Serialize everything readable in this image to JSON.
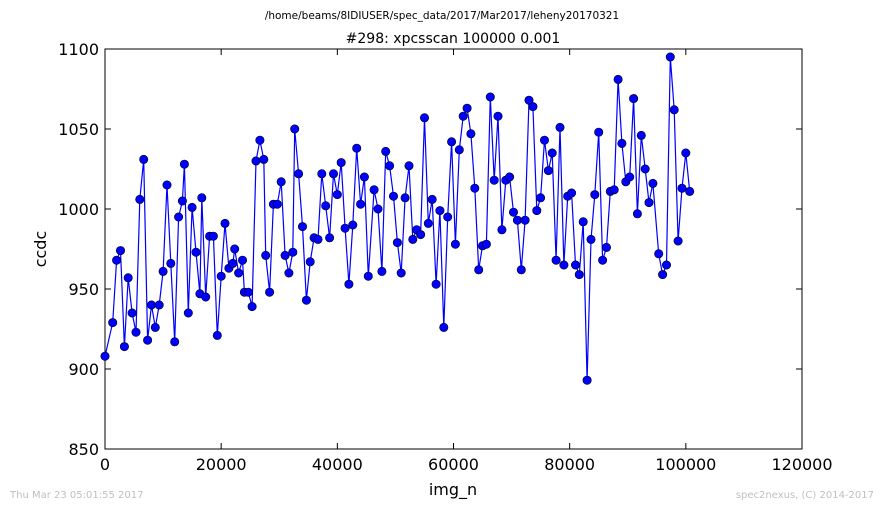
{
  "chart_data": {
    "type": "line",
    "suptitle": "/home/beams/8IDIUSER/spec_data/2017/Mar2017/leheny20170321",
    "title": "#298: xpcsscan 100000 0.001",
    "xlabel": "img_n",
    "ylabel": "ccdc",
    "xlim": [
      0,
      120000
    ],
    "ylim": [
      850,
      1100
    ],
    "xticks": [
      0,
      20000,
      40000,
      60000,
      80000,
      100000,
      120000
    ],
    "yticks": [
      850,
      900,
      950,
      1000,
      1050,
      1100
    ],
    "xtick_labels": [
      "0",
      "20000",
      "40000",
      "60000",
      "80000",
      "100000",
      "120000"
    ],
    "ytick_labels": [
      "850",
      "900",
      "950",
      "1000",
      "1050",
      "1100"
    ],
    "grid": false,
    "series": [
      {
        "color": "#0000ff",
        "marker": "circle",
        "points": [
          [
            0,
            908
          ],
          [
            1333,
            929
          ],
          [
            2000,
            968
          ],
          [
            2667,
            974
          ],
          [
            3333,
            914
          ],
          [
            4000,
            957
          ],
          [
            4667,
            935
          ],
          [
            5333,
            923
          ],
          [
            6000,
            1006
          ],
          [
            6667,
            1031
          ],
          [
            7333,
            918
          ],
          [
            8000,
            940
          ],
          [
            8667,
            926
          ],
          [
            9333,
            940
          ],
          [
            10000,
            961
          ],
          [
            10667,
            1015
          ],
          [
            11333,
            966
          ],
          [
            12000,
            917
          ],
          [
            12667,
            995
          ],
          [
            13333,
            1005
          ],
          [
            13667,
            1028
          ],
          [
            14333,
            935
          ],
          [
            15000,
            1001
          ],
          [
            15667,
            973
          ],
          [
            16333,
            947
          ],
          [
            16667,
            1007
          ],
          [
            17333,
            945
          ],
          [
            18000,
            983
          ],
          [
            18667,
            983
          ],
          [
            19333,
            921
          ],
          [
            20000,
            958
          ],
          [
            20667,
            991
          ],
          [
            21333,
            963
          ],
          [
            22000,
            966
          ],
          [
            22333,
            975
          ],
          [
            23000,
            960
          ],
          [
            23667,
            968
          ],
          [
            24000,
            948
          ],
          [
            24667,
            948
          ],
          [
            25333,
            939
          ],
          [
            26000,
            1030
          ],
          [
            26667,
            1043
          ],
          [
            27333,
            1031
          ],
          [
            27667,
            971
          ],
          [
            28333,
            948
          ],
          [
            29000,
            1003
          ],
          [
            29667,
            1003
          ],
          [
            30333,
            1017
          ],
          [
            31000,
            971
          ],
          [
            31667,
            960
          ],
          [
            32333,
            973
          ],
          [
            32667,
            1050
          ],
          [
            33333,
            1022
          ],
          [
            34000,
            989
          ],
          [
            34667,
            943
          ],
          [
            35333,
            967
          ],
          [
            36000,
            982
          ],
          [
            36667,
            981
          ],
          [
            37333,
            1022
          ],
          [
            38000,
            1002
          ],
          [
            38667,
            982
          ],
          [
            39333,
            1022
          ],
          [
            40000,
            1009
          ],
          [
            40667,
            1029
          ],
          [
            41333,
            988
          ],
          [
            42000,
            953
          ],
          [
            42667,
            990
          ],
          [
            43333,
            1038
          ],
          [
            44000,
            1003
          ],
          [
            44667,
            1020
          ],
          [
            45333,
            958
          ],
          [
            46333,
            1012
          ],
          [
            47000,
            1000
          ],
          [
            47667,
            961
          ],
          [
            48333,
            1036
          ],
          [
            49000,
            1027
          ],
          [
            49667,
            1008
          ],
          [
            50333,
            979
          ],
          [
            51000,
            960
          ],
          [
            51667,
            1007
          ],
          [
            52333,
            1027
          ],
          [
            53000,
            981
          ],
          [
            53667,
            987
          ],
          [
            54333,
            984
          ],
          [
            55000,
            1057
          ],
          [
            55667,
            991
          ],
          [
            56333,
            1006
          ],
          [
            57000,
            953
          ],
          [
            57667,
            999
          ],
          [
            58333,
            926
          ],
          [
            59000,
            995
          ],
          [
            59667,
            1042
          ],
          [
            60333,
            978
          ],
          [
            61000,
            1037
          ],
          [
            61667,
            1058
          ],
          [
            62333,
            1063
          ],
          [
            63000,
            1047
          ],
          [
            63667,
            1013
          ],
          [
            64333,
            962
          ],
          [
            65000,
            977
          ],
          [
            65667,
            978
          ],
          [
            66333,
            1070
          ],
          [
            67000,
            1018
          ],
          [
            67667,
            1058
          ],
          [
            68333,
            987
          ],
          [
            69000,
            1018
          ],
          [
            69667,
            1020
          ],
          [
            70333,
            998
          ],
          [
            71000,
            993
          ],
          [
            71667,
            962
          ],
          [
            72333,
            993
          ],
          [
            73000,
            1068
          ],
          [
            73667,
            1064
          ],
          [
            74333,
            999
          ],
          [
            75000,
            1007
          ],
          [
            75667,
            1043
          ],
          [
            76333,
            1024
          ],
          [
            77000,
            1035
          ],
          [
            77667,
            968
          ],
          [
            78333,
            1051
          ],
          [
            79000,
            965
          ],
          [
            79667,
            1008
          ],
          [
            80333,
            1010
          ],
          [
            81000,
            965
          ],
          [
            81667,
            959
          ],
          [
            82333,
            992
          ],
          [
            83000,
            893
          ],
          [
            83667,
            981
          ],
          [
            84333,
            1009
          ],
          [
            85000,
            1048
          ],
          [
            85667,
            968
          ],
          [
            86333,
            976
          ],
          [
            87000,
            1011
          ],
          [
            87667,
            1012
          ],
          [
            88333,
            1081
          ],
          [
            89000,
            1041
          ],
          [
            89667,
            1017
          ],
          [
            90333,
            1020
          ],
          [
            91000,
            1069
          ],
          [
            91667,
            997
          ],
          [
            92333,
            1046
          ],
          [
            93000,
            1025
          ],
          [
            93667,
            1004
          ],
          [
            94333,
            1016
          ],
          [
            95333,
            972
          ],
          [
            96000,
            959
          ],
          [
            96667,
            965
          ],
          [
            97333,
            1095
          ],
          [
            98000,
            1062
          ],
          [
            98667,
            980
          ],
          [
            99333,
            1013
          ],
          [
            100000,
            1035
          ],
          [
            100667,
            1011
          ]
        ]
      }
    ]
  },
  "footer": {
    "left": "Thu Mar 23 05:01:55 2017",
    "right": "spec2nexus, (C) 2014-2017"
  }
}
